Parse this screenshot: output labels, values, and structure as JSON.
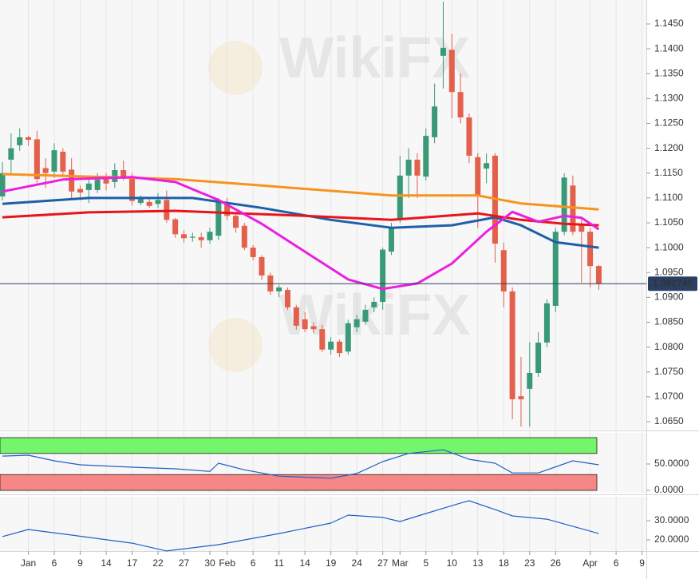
{
  "watermark": "WikiFX",
  "chart_data": [
    {
      "type": "candlestick",
      "x": [
        0,
        1,
        2,
        3,
        4,
        5,
        6,
        7,
        8,
        9,
        10,
        11,
        12,
        13,
        14,
        15,
        16,
        17,
        18,
        19,
        20,
        21,
        22,
        23,
        24,
        25,
        26,
        27,
        28,
        29,
        30,
        31,
        32,
        33,
        34,
        35,
        36,
        37,
        38,
        39,
        40,
        41,
        42,
        43,
        44,
        45,
        46,
        47,
        48,
        49,
        50,
        51,
        52,
        53,
        54,
        55,
        56,
        57,
        58,
        59,
        60,
        61,
        62,
        63,
        64,
        65,
        66,
        67,
        68,
        69
      ],
      "open": [
        1.1103,
        1.1177,
        1.1206,
        1.1222,
        1.1218,
        1.116,
        1.1153,
        1.1193,
        1.1157,
        1.1118,
        1.1116,
        1.1116,
        1.1138,
        1.1132,
        1.1156,
        1.1142,
        1.109,
        1.1092,
        1.1088,
        1.1096,
        1.1057,
        1.1027,
        1.102,
        1.1021,
        1.1015,
        1.1024,
        1.1087,
        1.1064,
        1.1044,
        1.1,
        1.0981,
        1.0944,
        1.0912,
        1.0915,
        1.088,
        1.0856,
        1.0842,
        1.0836,
        1.0795,
        1.0811,
        1.0791,
        1.084,
        1.0851,
        1.088,
        1.0891,
        1.0992,
        1.1056,
        1.1145,
        1.1177,
        1.1143,
        1.1222,
        1.1386,
        1.1398,
        1.1313,
        1.1262,
        1.1182,
        1.1159,
        1.1185,
        1.0995,
        1.0912,
        1.0701,
        1.0716,
        1.0748,
        1.0809,
        1.0883,
        1.1032,
        1.1125,
        1.1048,
        1.1032,
        1.0963
      ],
      "high": [
        1.1172,
        1.123,
        1.124,
        1.1225,
        1.1235,
        1.118,
        1.121,
        1.12,
        1.118,
        1.1125,
        1.114,
        1.115,
        1.115,
        1.117,
        1.1175,
        1.115,
        1.1105,
        1.11,
        1.111,
        1.1115,
        1.106,
        1.1035,
        1.103,
        1.103,
        1.104,
        1.11,
        1.11,
        1.107,
        1.105,
        1.1005,
        1.0985,
        1.095,
        1.0925,
        1.092,
        1.0885,
        1.087,
        1.085,
        1.0845,
        1.082,
        1.0815,
        1.0855,
        1.0865,
        1.0885,
        1.09,
        1.1,
        1.105,
        1.1185,
        1.12,
        1.119,
        1.124,
        1.133,
        1.1495,
        1.143,
        1.135,
        1.127,
        1.119,
        1.119,
        1.119,
        1.101,
        1.092,
        1.078,
        1.081,
        1.083,
        1.0896,
        1.104,
        1.115,
        1.1145,
        1.106,
        1.104,
        1.0965
      ],
      "low": [
        1.1095,
        1.115,
        1.1195,
        1.1205,
        1.113,
        1.112,
        1.114,
        1.1145,
        1.1095,
        1.1095,
        1.109,
        1.111,
        1.1115,
        1.112,
        1.1135,
        1.1085,
        1.1085,
        1.108,
        1.108,
        1.105,
        1.102,
        1.101,
        1.1012,
        1.1,
        1.1008,
        1.1015,
        1.1055,
        1.103,
        1.0995,
        1.0975,
        1.0935,
        1.0905,
        1.09,
        1.0875,
        1.0835,
        1.083,
        1.0828,
        1.079,
        1.0785,
        1.078,
        1.0785,
        1.083,
        1.0845,
        1.087,
        1.0875,
        1.0985,
        1.105,
        1.11,
        1.11,
        1.1135,
        1.121,
        1.132,
        1.126,
        1.125,
        1.117,
        1.104,
        1.113,
        1.097,
        1.088,
        1.0655,
        1.064,
        1.064,
        1.074,
        1.08,
        1.087,
        1.1025,
        1.1025,
        1.093,
        1.092,
        1.0915
      ],
      "close": [
        1.115,
        1.12,
        1.1222,
        1.1217,
        1.1138,
        1.115,
        1.1196,
        1.1153,
        1.1113,
        1.1111,
        1.1129,
        1.1137,
        1.1129,
        1.1156,
        1.1142,
        1.1094,
        1.1098,
        1.1084,
        1.1096,
        1.1056,
        1.1027,
        1.1019,
        1.1022,
        1.1015,
        1.1032,
        1.1093,
        1.1064,
        1.104,
        1.1,
        1.0981,
        1.0944,
        1.0912,
        1.092,
        1.088,
        1.0843,
        1.0836,
        1.0836,
        1.0795,
        1.0811,
        1.0788,
        1.0848,
        1.0856,
        1.0875,
        1.0891,
        1.0996,
        1.104,
        1.1145,
        1.1177,
        1.1145,
        1.1225,
        1.1284,
        1.1402,
        1.1313,
        1.1262,
        1.1185,
        1.1105,
        1.117,
        1.1008,
        1.0912,
        1.0695,
        1.0695,
        1.0748,
        1.0809,
        1.0888,
        1.1032,
        1.1141,
        1.1032,
        1.1032,
        1.0963,
        1.0927
      ],
      "colors": {
        "up": "#3a9a77",
        "down": "#e2604c"
      },
      "series": [
        {
          "color": "#f7941d",
          "x": [
            0,
            10,
            20,
            30,
            45,
            55,
            60,
            69
          ],
          "values": [
            1.1148,
            1.1143,
            1.1138,
            1.1125,
            1.1105,
            1.1105,
            1.1089,
            1.1077
          ]
        },
        {
          "color": "#1f5fa8",
          "x": [
            0,
            10,
            22,
            30,
            38,
            45,
            52,
            57,
            60,
            64,
            69
          ],
          "values": [
            1.1088,
            1.11,
            1.11,
            1.108,
            1.1056,
            1.104,
            1.1045,
            1.1061,
            1.1045,
            1.1011,
            1.1
          ]
        },
        {
          "color": "#e8141b",
          "x": [
            0,
            10,
            20,
            35,
            45,
            55,
            60,
            65,
            69
          ],
          "values": [
            1.1061,
            1.1071,
            1.1074,
            1.1064,
            1.1056,
            1.1069,
            1.1056,
            1.1048,
            1.1045
          ]
        },
        {
          "color": "#ec1ee0",
          "x": [
            0,
            7,
            15,
            20,
            25,
            30,
            35,
            40,
            44,
            48,
            52,
            56,
            59,
            62,
            65,
            67,
            69
          ],
          "values": [
            1.1113,
            1.1137,
            1.1142,
            1.1132,
            1.1096,
            1.1048,
            1.0992,
            1.0936,
            1.0917,
            1.0928,
            1.0968,
            1.1032,
            1.1072,
            1.1052,
            1.1064,
            1.106,
            1.1037
          ]
        }
      ],
      "last_price": {
        "value": 1.09274,
        "label": "1.092740"
      },
      "ylim": [
        1.06355,
        1.14982
      ],
      "yticks": [
        {
          "value": 1.065,
          "label": "1.0650"
        },
        {
          "value": 1.07,
          "label": "1.0700"
        },
        {
          "value": 1.075,
          "label": "1.0750"
        },
        {
          "value": 1.08,
          "label": "1.0800"
        },
        {
          "value": 1.085,
          "label": "1.0850"
        },
        {
          "value": 1.09,
          "label": "1.0900"
        },
        {
          "value": 1.095,
          "label": "1.0950"
        },
        {
          "value": 1.1,
          "label": "1.1000"
        },
        {
          "value": 1.105,
          "label": "1.1050"
        },
        {
          "value": 1.11,
          "label": "1.1100"
        },
        {
          "value": 1.115,
          "label": "1.1150"
        },
        {
          "value": 1.12,
          "label": "1.1200"
        },
        {
          "value": 1.125,
          "label": "1.1250"
        },
        {
          "value": 1.13,
          "label": "1.1300"
        },
        {
          "value": 1.135,
          "label": "1.1350"
        },
        {
          "value": 1.14,
          "label": "1.1400"
        },
        {
          "value": 1.145,
          "label": "1.1450"
        }
      ],
      "xlim": [
        -0.28,
        74.5
      ],
      "xticks": [
        {
          "value": 3,
          "label": "Jan"
        },
        {
          "value": 6,
          "label": "6"
        },
        {
          "value": 9,
          "label": "9"
        },
        {
          "value": 12,
          "label": "14"
        },
        {
          "value": 15,
          "label": "17"
        },
        {
          "value": 18,
          "label": "22"
        },
        {
          "value": 21,
          "label": "27"
        },
        {
          "value": 24,
          "label": "30"
        },
        {
          "value": 26,
          "label": "Feb"
        },
        {
          "value": 29,
          "label": "6"
        },
        {
          "value": 32,
          "label": "11"
        },
        {
          "value": 35,
          "label": "14"
        },
        {
          "value": 38,
          "label": "19"
        },
        {
          "value": 41,
          "label": "24"
        },
        {
          "value": 44,
          "label": "27"
        },
        {
          "value": 46,
          "label": "Mar"
        },
        {
          "value": 49,
          "label": "5"
        },
        {
          "value": 52,
          "label": "10"
        },
        {
          "value": 55,
          "label": "13"
        },
        {
          "value": 58,
          "label": "18"
        },
        {
          "value": 61,
          "label": "23"
        },
        {
          "value": 64,
          "label": "26"
        },
        {
          "value": 68,
          "label": "Apr"
        },
        {
          "value": 71,
          "label": "6"
        },
        {
          "value": 74,
          "label": "9"
        }
      ],
      "grid": "x"
    },
    {
      "type": "line",
      "series": [
        {
          "color": "#1f5fc8",
          "x": [
            0,
            3,
            6,
            9,
            15,
            20,
            24,
            25,
            28,
            32,
            38,
            41,
            44,
            47,
            51,
            54,
            57,
            59,
            62,
            66,
            69
          ],
          "values": [
            65,
            66.7,
            56,
            48.5,
            44,
            41,
            36,
            51.5,
            39,
            27,
            23,
            32,
            54.5,
            70,
            77,
            59,
            51.5,
            33,
            33,
            56,
            48.5
          ]
        }
      ],
      "bands": [
        {
          "from": 70,
          "to": 100,
          "color": "#74f56c"
        },
        {
          "from": 0,
          "to": 30,
          "color": "#f78686"
        }
      ],
      "xlim": [
        -0.28,
        74.5
      ],
      "ylim": [
        -4.5,
        112.1
      ],
      "yticks": [
        {
          "value": 50,
          "label": "50.0000"
        },
        {
          "value": 0,
          "label": "0.0000"
        }
      ]
    },
    {
      "type": "line",
      "series": [
        {
          "color": "#1f5fc8",
          "x": [
            0,
            3,
            8,
            15,
            19,
            25,
            32,
            38,
            40,
            44,
            46,
            49,
            53,
            54,
            57,
            59,
            63,
            69
          ],
          "values": [
            21.7,
            25.4,
            22.5,
            18.3,
            14.2,
            17.5,
            23.3,
            28.75,
            32.9,
            31.7,
            29.6,
            33.75,
            39.2,
            40.4,
            35.8,
            32.5,
            30.8,
            23.3
          ]
        }
      ],
      "xlim": [
        -0.28,
        74.5
      ],
      "ylim": [
        14.17,
        42.5
      ],
      "yticks": [
        {
          "value": 30,
          "label": "30.0000"
        },
        {
          "value": 20,
          "label": "20.0000"
        }
      ]
    }
  ]
}
